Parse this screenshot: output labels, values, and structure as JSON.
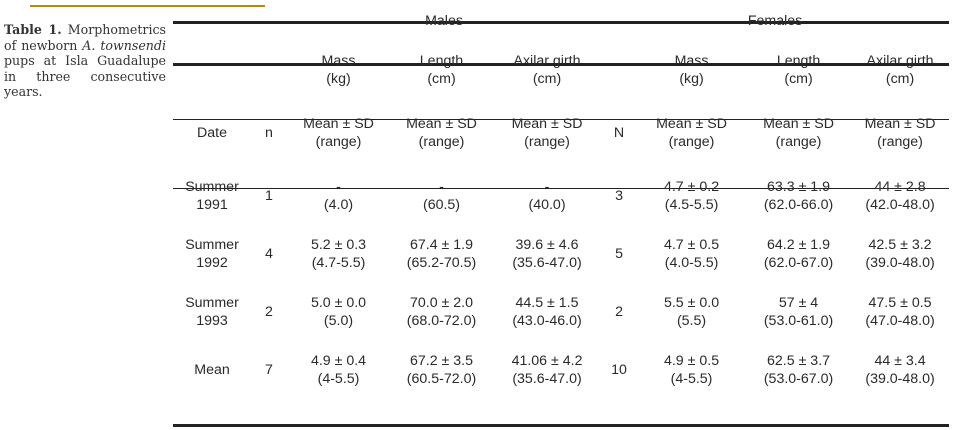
{
  "caption": {
    "label": "Table 1.",
    "pre": " Morphometrics of newborn ",
    "species": "A. townsendi",
    "post": " pups at Isla Guadalupe in three consecutive years."
  },
  "table": {
    "groups": {
      "males": "Males",
      "females": "Females"
    },
    "units": {
      "mass": [
        "Mass",
        "(kg)"
      ],
      "length": [
        "Length",
        "(cm)"
      ],
      "girth": [
        "Axilar girth",
        "(cm)"
      ]
    },
    "subheaders": {
      "date": "Date",
      "n_males": "n",
      "n_females": "N",
      "stat": [
        "Mean ± SD",
        "(range)"
      ]
    },
    "rows": [
      {
        "date": [
          "Summer",
          "1991"
        ],
        "n_m": "1",
        "m_mass": [
          "-",
          "(4.0)"
        ],
        "m_len": [
          "-",
          "(60.5)"
        ],
        "m_girth": [
          "-",
          "(40.0)"
        ],
        "n_f": "3",
        "f_mass": [
          "4.7 ± 0.2",
          "(4.5-5.5)"
        ],
        "f_len": [
          "63.3 ± 1.9",
          "(62.0-66.0)"
        ],
        "f_girth": [
          "44 ± 2.8",
          "(42.0-48.0)"
        ]
      },
      {
        "date": [
          "Summer",
          "1992"
        ],
        "n_m": "4",
        "m_mass": [
          "5.2 ± 0.3",
          "(4.7-5.5)"
        ],
        "m_len": [
          "67.4 ± 1.9",
          "(65.2-70.5)"
        ],
        "m_girth": [
          "39.6 ± 4.6",
          "(35.6-47.0)"
        ],
        "n_f": "5",
        "f_mass": [
          "4.7 ± 0.5",
          "(4.0-5.5)"
        ],
        "f_len": [
          "64.2 ± 1.9",
          "(62.0-67.0)"
        ],
        "f_girth": [
          "42.5 ± 3.2",
          "(39.0-48.0)"
        ]
      },
      {
        "date": [
          "Summer",
          "1993"
        ],
        "n_m": "2",
        "m_mass": [
          "5.0 ± 0.0",
          "(5.0)"
        ],
        "m_len": [
          "70.0 ± 2.0",
          "(68.0-72.0)"
        ],
        "m_girth": [
          "44.5 ± 1.5",
          "(43.0-46.0)"
        ],
        "n_f": "2",
        "f_mass": [
          "5.5 ± 0.0",
          "(5.5)"
        ],
        "f_len": [
          "57 ± 4",
          "(53.0-61.0)"
        ],
        "f_girth": [
          "47.5 ± 0.5",
          "(47.0-48.0)"
        ]
      },
      {
        "date": [
          "Mean",
          ""
        ],
        "n_m": "7",
        "m_mass": [
          "4.9 ± 0.4",
          "(4-5.5)"
        ],
        "m_len": [
          "67.2 ± 3.5",
          "(60.5-72.0)"
        ],
        "m_girth": [
          "41.06 ± 4.2",
          "(35.6-47.0)"
        ],
        "n_f": "10",
        "f_mass": [
          "4.9 ± 0.5",
          "(4-5.5)"
        ],
        "f_len": [
          "62.5 ± 3.7",
          "(53.0-67.0)"
        ],
        "f_girth": [
          "44 ± 3.4",
          "(39.0-48.0)"
        ]
      }
    ]
  }
}
